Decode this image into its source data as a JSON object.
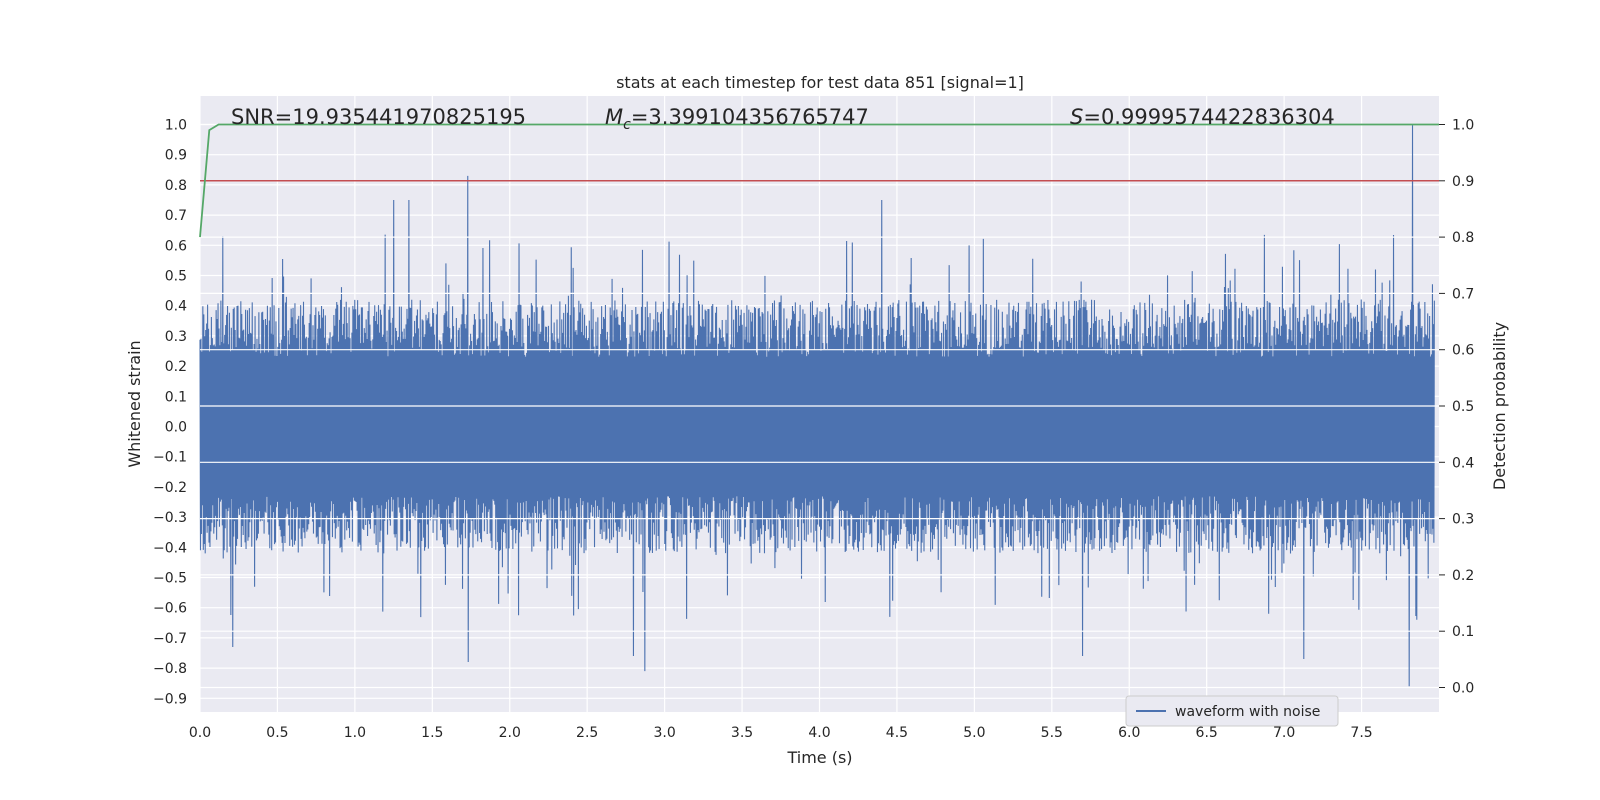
{
  "chart_data": {
    "type": "line",
    "title": "stats at each timestep for test data 851 [signal=1]",
    "xlabel": "Time (s)",
    "ylabel_left": "Whitened strain",
    "ylabel_right": "Detection probability",
    "xlim": [
      0.0,
      8.0
    ],
    "ylim_left": [
      -0.95,
      1.08
    ],
    "ylim_right": [
      -0.095,
      1.0
    ],
    "x_ticks": [
      "0.0",
      "0.5",
      "1.0",
      "1.5",
      "2.0",
      "2.5",
      "3.0",
      "3.5",
      "4.0",
      "4.5",
      "5.0",
      "5.5",
      "6.0",
      "6.5",
      "7.0",
      "7.5"
    ],
    "y_ticks_left": [
      "1.0",
      "0.9",
      "0.8",
      "0.7",
      "0.6",
      "0.5",
      "0.4",
      "0.3",
      "0.2",
      "0.1",
      "0.0",
      "-0.1",
      "-0.2",
      "-0.3",
      "-0.4",
      "-0.5",
      "-0.6",
      "-0.7",
      "-0.8",
      "-0.9"
    ],
    "y_ticks_right": [
      "1.0",
      "0.9",
      "0.8",
      "0.7",
      "0.6",
      "0.5",
      "0.4",
      "0.3",
      "0.2",
      "0.1",
      "0.0"
    ],
    "grid": true,
    "legend": {
      "position": "lower-right",
      "entries": [
        "waveform with noise"
      ]
    },
    "annotations": {
      "snr": "SNR=19.935441970825195",
      "mc_symbol": "M",
      "mc_sub": "c",
      "mc_value": "=3.399104356765747",
      "s_symbol": "S",
      "s_value": "=0.9999574422836304"
    },
    "series": [
      {
        "name": "waveform with noise",
        "axis": "left",
        "color": "#4c72b0",
        "envelope_typical": 0.42,
        "envelope_range": [
          -0.86,
          1.0
        ],
        "notable_peaks": [
          {
            "x": 0.15,
            "y": 0.63
          },
          {
            "x": 0.21,
            "y": -0.73
          },
          {
            "x": 1.25,
            "y": 0.75
          },
          {
            "x": 1.35,
            "y": 0.75
          },
          {
            "x": 1.73,
            "y": 0.83
          },
          {
            "x": 1.73,
            "y": -0.78
          },
          {
            "x": 2.8,
            "y": -0.76
          },
          {
            "x": 2.87,
            "y": -0.81
          },
          {
            "x": 4.4,
            "y": 0.75
          },
          {
            "x": 5.7,
            "y": -0.76
          },
          {
            "x": 7.13,
            "y": -0.77
          },
          {
            "x": 7.83,
            "y": 1.0
          },
          {
            "x": 7.81,
            "y": -0.86
          }
        ]
      },
      {
        "name": "",
        "axis": "right",
        "color": "#55a868",
        "x": [
          0.0,
          0.06,
          0.12,
          8.0
        ],
        "y": [
          0.8,
          0.99,
          1.0,
          1.0
        ]
      },
      {
        "name": "",
        "axis": "right",
        "color": "#c44e52",
        "type": "hline",
        "y": 0.9
      }
    ]
  }
}
